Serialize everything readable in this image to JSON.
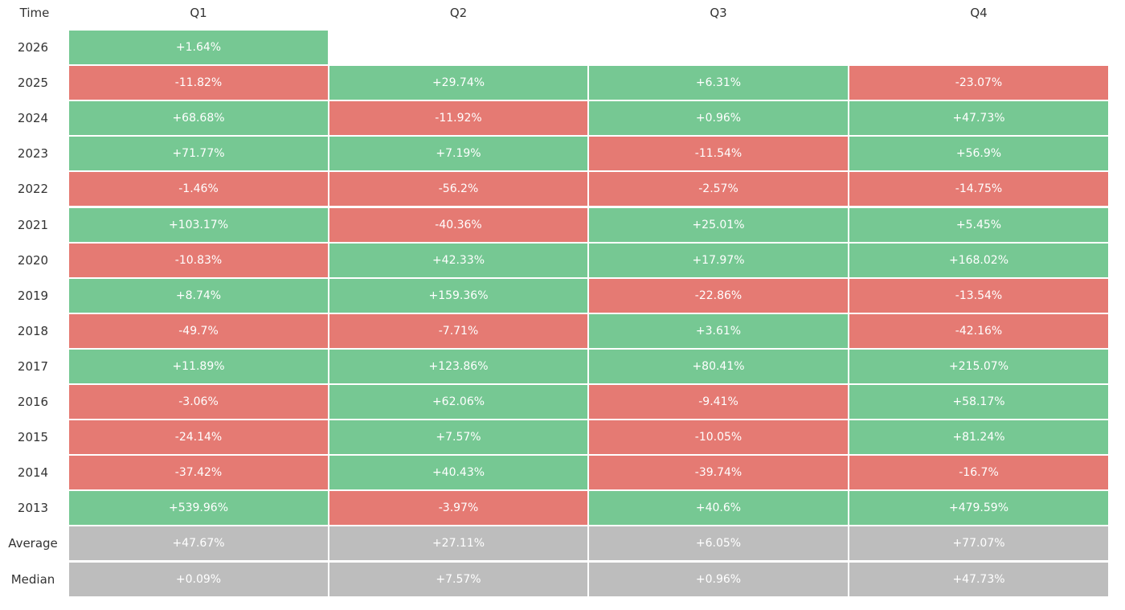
{
  "table": {
    "header": [
      "Time",
      "Q1",
      "Q2",
      "Q3",
      "Q4"
    ],
    "rows": [
      [
        "2026",
        "+1.64%",
        null,
        null,
        null
      ],
      [
        "2025",
        "-11.82%",
        "+29.74%",
        "+6.31%",
        "-23.07%"
      ],
      [
        "2024",
        "+68.68%",
        "-11.92%",
        "+0.96%",
        "+47.73%"
      ],
      [
        "2023",
        "+71.77%",
        "+7.19%",
        "-11.54%",
        "+56.9%"
      ],
      [
        "2022",
        "-1.46%",
        "-56.2%",
        "-2.57%",
        "-14.75%"
      ],
      [
        "2021",
        "+103.17%",
        "-40.36%",
        "+25.01%",
        "+5.45%"
      ],
      [
        "2020",
        "-10.83%",
        "+42.33%",
        "+17.97%",
        "+168.02%"
      ],
      [
        "2019",
        "+8.74%",
        "+159.36%",
        "-22.86%",
        "-13.54%"
      ],
      [
        "2018",
        "-49.7%",
        "-7.71%",
        "+3.61%",
        "-42.16%"
      ],
      [
        "2017",
        "+11.89%",
        "+123.86%",
        "+80.41%",
        "+215.07%"
      ],
      [
        "2016",
        "-3.06%",
        "+62.06%",
        "-9.41%",
        "+58.17%"
      ],
      [
        "2015",
        "-24.14%",
        "+7.57%",
        "-10.05%",
        "+81.24%"
      ],
      [
        "2014",
        "-37.42%",
        "+40.43%",
        "-39.74%",
        "-16.7%"
      ],
      [
        "2013",
        "+539.96%",
        "-3.97%",
        "+40.6%",
        "+479.59%"
      ]
    ],
    "summary": [
      [
        "Average",
        "+47.67%",
        "+27.11%",
        "+6.05%",
        "+77.07%"
      ],
      [
        "Median",
        "+0.09%",
        "+7.57%",
        "+0.96%",
        "+47.73%"
      ]
    ]
  },
  "colors": {
    "positive": "#76c893",
    "negative": "#e57a73",
    "summary": "#bdbdbd"
  }
}
